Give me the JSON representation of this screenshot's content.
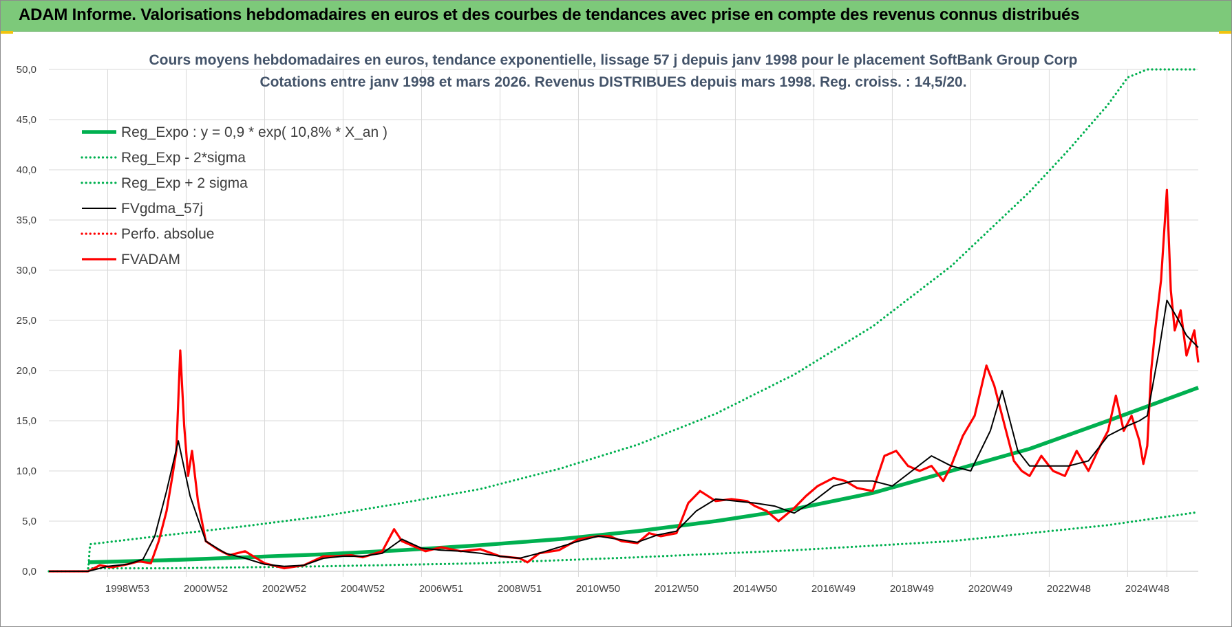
{
  "banner": {
    "title": "ADAM Informe. Valorisations hebdomadaires en euros et des courbes de tendances avec prise en compte des revenus connus distribués"
  },
  "colors": {
    "banner_bg": "#7dc97a",
    "trend_green": "#00b050",
    "smooth_black": "#000000",
    "price_red": "#ff0000",
    "title_slate": "#44546a"
  },
  "chart_data": {
    "type": "line",
    "title": "Cours moyens hebdomadaires en euros, tendance exponentielle, lissage 57 j depuis janv 1998 pour le placement SoftBank Group Corp",
    "subtitle": "Cotations entre janv 1998 et mars 2026. Revenus DISTRIBUES depuis mars 1998. Reg. croiss. : 14,5/20.",
    "xlabel": "",
    "ylabel": "",
    "xlim": [
      1997.0,
      2026.3
    ],
    "ylim": [
      0,
      50
    ],
    "yticks": [
      "0,0",
      "5,0",
      "10,0",
      "15,0",
      "20,0",
      "25,0",
      "30,0",
      "35,0",
      "40,0",
      "45,0",
      "50,0"
    ],
    "xticks": [
      {
        "label": "1998W53",
        "x": 1999.0
      },
      {
        "label": "2000W52",
        "x": 2001.0
      },
      {
        "label": "2002W52",
        "x": 2003.0
      },
      {
        "label": "2004W52",
        "x": 2005.0
      },
      {
        "label": "2006W51",
        "x": 2007.0
      },
      {
        "label": "2008W51",
        "x": 2009.0
      },
      {
        "label": "2010W50",
        "x": 2011.0
      },
      {
        "label": "2012W50",
        "x": 2013.0
      },
      {
        "label": "2014W50",
        "x": 2015.0
      },
      {
        "label": "2016W49",
        "x": 2017.0
      },
      {
        "label": "2018W49",
        "x": 2019.0
      },
      {
        "label": "2020W49",
        "x": 2021.0
      },
      {
        "label": "2022W48",
        "x": 2023.0
      },
      {
        "label": "2024W48",
        "x": 2025.0
      }
    ],
    "grid": true,
    "legend_position": "top-left",
    "series": [
      {
        "name": "Reg_Expo : y = 0,9 * exp( 10,8% *  X_an )",
        "style": "solid-thick",
        "color": "#00b050",
        "x": [
          1998.0,
          2000.0,
          2002.0,
          2004.0,
          2006.0,
          2008.0,
          2010.0,
          2012.0,
          2014.0,
          2016.0,
          2018.0,
          2020.0,
          2022.0,
          2024.0,
          2026.3
        ],
        "y": [
          0.9,
          1.1,
          1.4,
          1.7,
          2.1,
          2.6,
          3.2,
          4.0,
          5.0,
          6.2,
          7.8,
          10.0,
          12.2,
          15.0,
          18.3
        ]
      },
      {
        "name": "Reg_Exp - 2*sigma",
        "style": "dotted",
        "color": "#00b050",
        "x": [
          1998.0,
          2000.0,
          2004.0,
          2008.0,
          2012.0,
          2016.0,
          2020.0,
          2024.0,
          2026.3
        ],
        "y": [
          0.3,
          0.3,
          0.5,
          0.8,
          1.4,
          2.1,
          3.0,
          4.6,
          5.9
        ]
      },
      {
        "name": "Reg_Exp + 2 sigma",
        "style": "dotted",
        "color": "#00b050",
        "x": [
          1997.0,
          1998.0,
          1998.05,
          2000.0,
          2002.0,
          2004.0,
          2006.0,
          2008.0,
          2010.0,
          2012.0,
          2014.0,
          2016.0,
          2018.0,
          2020.0,
          2022.0,
          2023.0,
          2024.0,
          2024.5,
          2025.0,
          2026.3
        ],
        "y": [
          0.0,
          0.0,
          2.7,
          3.6,
          4.5,
          5.5,
          6.8,
          8.2,
          10.2,
          12.6,
          15.7,
          19.6,
          24.4,
          30.4,
          37.8,
          42.0,
          46.5,
          49.2,
          50.0,
          50.0
        ]
      },
      {
        "name": "FVgdma_57j",
        "style": "solid",
        "color": "#000000",
        "x": [
          1997.0,
          1998.0,
          1998.5,
          1999.0,
          1999.4,
          1999.7,
          2000.0,
          2000.3,
          2000.6,
          2001.0,
          2001.5,
          2002.0,
          2002.5,
          2003.0,
          2003.5,
          2004.0,
          2004.5,
          2005.0,
          2005.5,
          2006.0,
          2006.5,
          2007.0,
          2007.5,
          2008.0,
          2008.5,
          2009.0,
          2009.5,
          2010.0,
          2010.5,
          2011.0,
          2011.5,
          2012.0,
          2012.5,
          2013.0,
          2013.5,
          2014.0,
          2014.5,
          2015.0,
          2015.5,
          2016.0,
          2016.5,
          2017.0,
          2017.5,
          2018.0,
          2018.5,
          2019.0,
          2019.5,
          2020.0,
          2020.5,
          2021.0,
          2021.3,
          2021.7,
          2022.0,
          2022.5,
          2023.0,
          2023.5,
          2024.0,
          2024.5,
          2024.8,
          2025.0,
          2025.3,
          2025.5,
          2025.8,
          2026.0,
          2026.3
        ],
        "y": [
          0.0,
          0.0,
          0.5,
          0.7,
          1.2,
          3.5,
          8.0,
          13.0,
          7.5,
          3.0,
          1.8,
          1.3,
          0.7,
          0.5,
          0.6,
          1.3,
          1.5,
          1.5,
          1.8,
          3.2,
          2.3,
          2.1,
          2.0,
          1.8,
          1.5,
          1.3,
          1.8,
          2.4,
          3.0,
          3.5,
          3.2,
          2.9,
          3.6,
          4.0,
          6.0,
          7.2,
          7.0,
          6.8,
          6.5,
          5.8,
          7.0,
          8.5,
          9.0,
          9.0,
          8.5,
          10.0,
          11.5,
          10.5,
          10.0,
          14.0,
          18.0,
          12.0,
          10.5,
          10.5,
          10.5,
          11.0,
          13.5,
          14.5,
          15.0,
          15.5,
          22.0,
          27.0,
          25.0,
          23.5,
          22.3
        ]
      },
      {
        "name": "Perfo. absolue",
        "style": "dotted",
        "color": "#ff0000",
        "x": [],
        "y": []
      },
      {
        "name": "FVADAM",
        "style": "solid-thick",
        "color": "#ff0000",
        "x": [
          1997.0,
          1998.0,
          1998.3,
          1998.6,
          1999.0,
          1999.3,
          1999.6,
          1999.8,
          2000.0,
          2000.15,
          2000.25,
          2000.35,
          2000.45,
          2000.55,
          2000.65,
          2000.8,
          2001.0,
          2001.3,
          2001.6,
          2002.0,
          2002.5,
          2003.0,
          2003.5,
          2004.0,
          2004.3,
          2004.7,
          2005.0,
          2005.5,
          2005.8,
          2006.0,
          2006.3,
          2006.6,
          2007.0,
          2007.5,
          2008.0,
          2008.5,
          2009.0,
          2009.2,
          2009.5,
          2010.0,
          2010.5,
          2011.0,
          2011.3,
          2011.6,
          2012.0,
          2012.3,
          2012.6,
          2013.0,
          2013.3,
          2013.6,
          2014.0,
          2014.4,
          2014.8,
          2015.0,
          2015.3,
          2015.6,
          2016.0,
          2016.3,
          2016.6,
          2017.0,
          2017.3,
          2017.6,
          2018.0,
          2018.3,
          2018.6,
          2018.9,
          2019.2,
          2019.5,
          2019.8,
          2020.0,
          2020.3,
          2020.6,
          2020.9,
          2021.1,
          2021.4,
          2021.6,
          2021.8,
          2022.0,
          2022.3,
          2022.6,
          2022.9,
          2023.2,
          2023.5,
          2023.8,
          2024.0,
          2024.2,
          2024.4,
          2024.6,
          2024.8,
          2024.9,
          2025.0,
          2025.1,
          2025.2,
          2025.35,
          2025.5,
          2025.6,
          2025.7,
          2025.85,
          2026.0,
          2026.2,
          2026.3
        ],
        "y": [
          0.0,
          0.0,
          0.6,
          0.4,
          0.7,
          1.0,
          0.8,
          3.0,
          6.0,
          9.5,
          12.0,
          22.0,
          14.5,
          9.5,
          12.0,
          7.0,
          3.0,
          2.2,
          1.6,
          2.0,
          0.8,
          0.3,
          0.6,
          1.5,
          1.5,
          1.6,
          1.4,
          2.0,
          4.2,
          3.0,
          2.5,
          2.0,
          2.4,
          2.0,
          2.2,
          1.5,
          1.3,
          0.9,
          1.8,
          2.1,
          3.2,
          3.5,
          3.5,
          3.0,
          2.8,
          3.8,
          3.5,
          3.8,
          6.8,
          8.0,
          7.0,
          7.2,
          7.0,
          6.5,
          6.0,
          5.0,
          6.3,
          7.5,
          8.5,
          9.3,
          9.0,
          8.3,
          8.0,
          11.5,
          12.0,
          10.5,
          10.0,
          10.5,
          9.0,
          10.5,
          13.5,
          15.5,
          20.5,
          18.5,
          14.0,
          11.0,
          10.0,
          9.5,
          11.5,
          10.0,
          9.5,
          12.0,
          10.0,
          12.5,
          14.0,
          17.5,
          14.0,
          15.5,
          13.0,
          10.7,
          12.5,
          20.0,
          24.0,
          29.0,
          38.0,
          28.0,
          24.0,
          26.0,
          21.5,
          24.0,
          20.8
        ]
      }
    ]
  }
}
